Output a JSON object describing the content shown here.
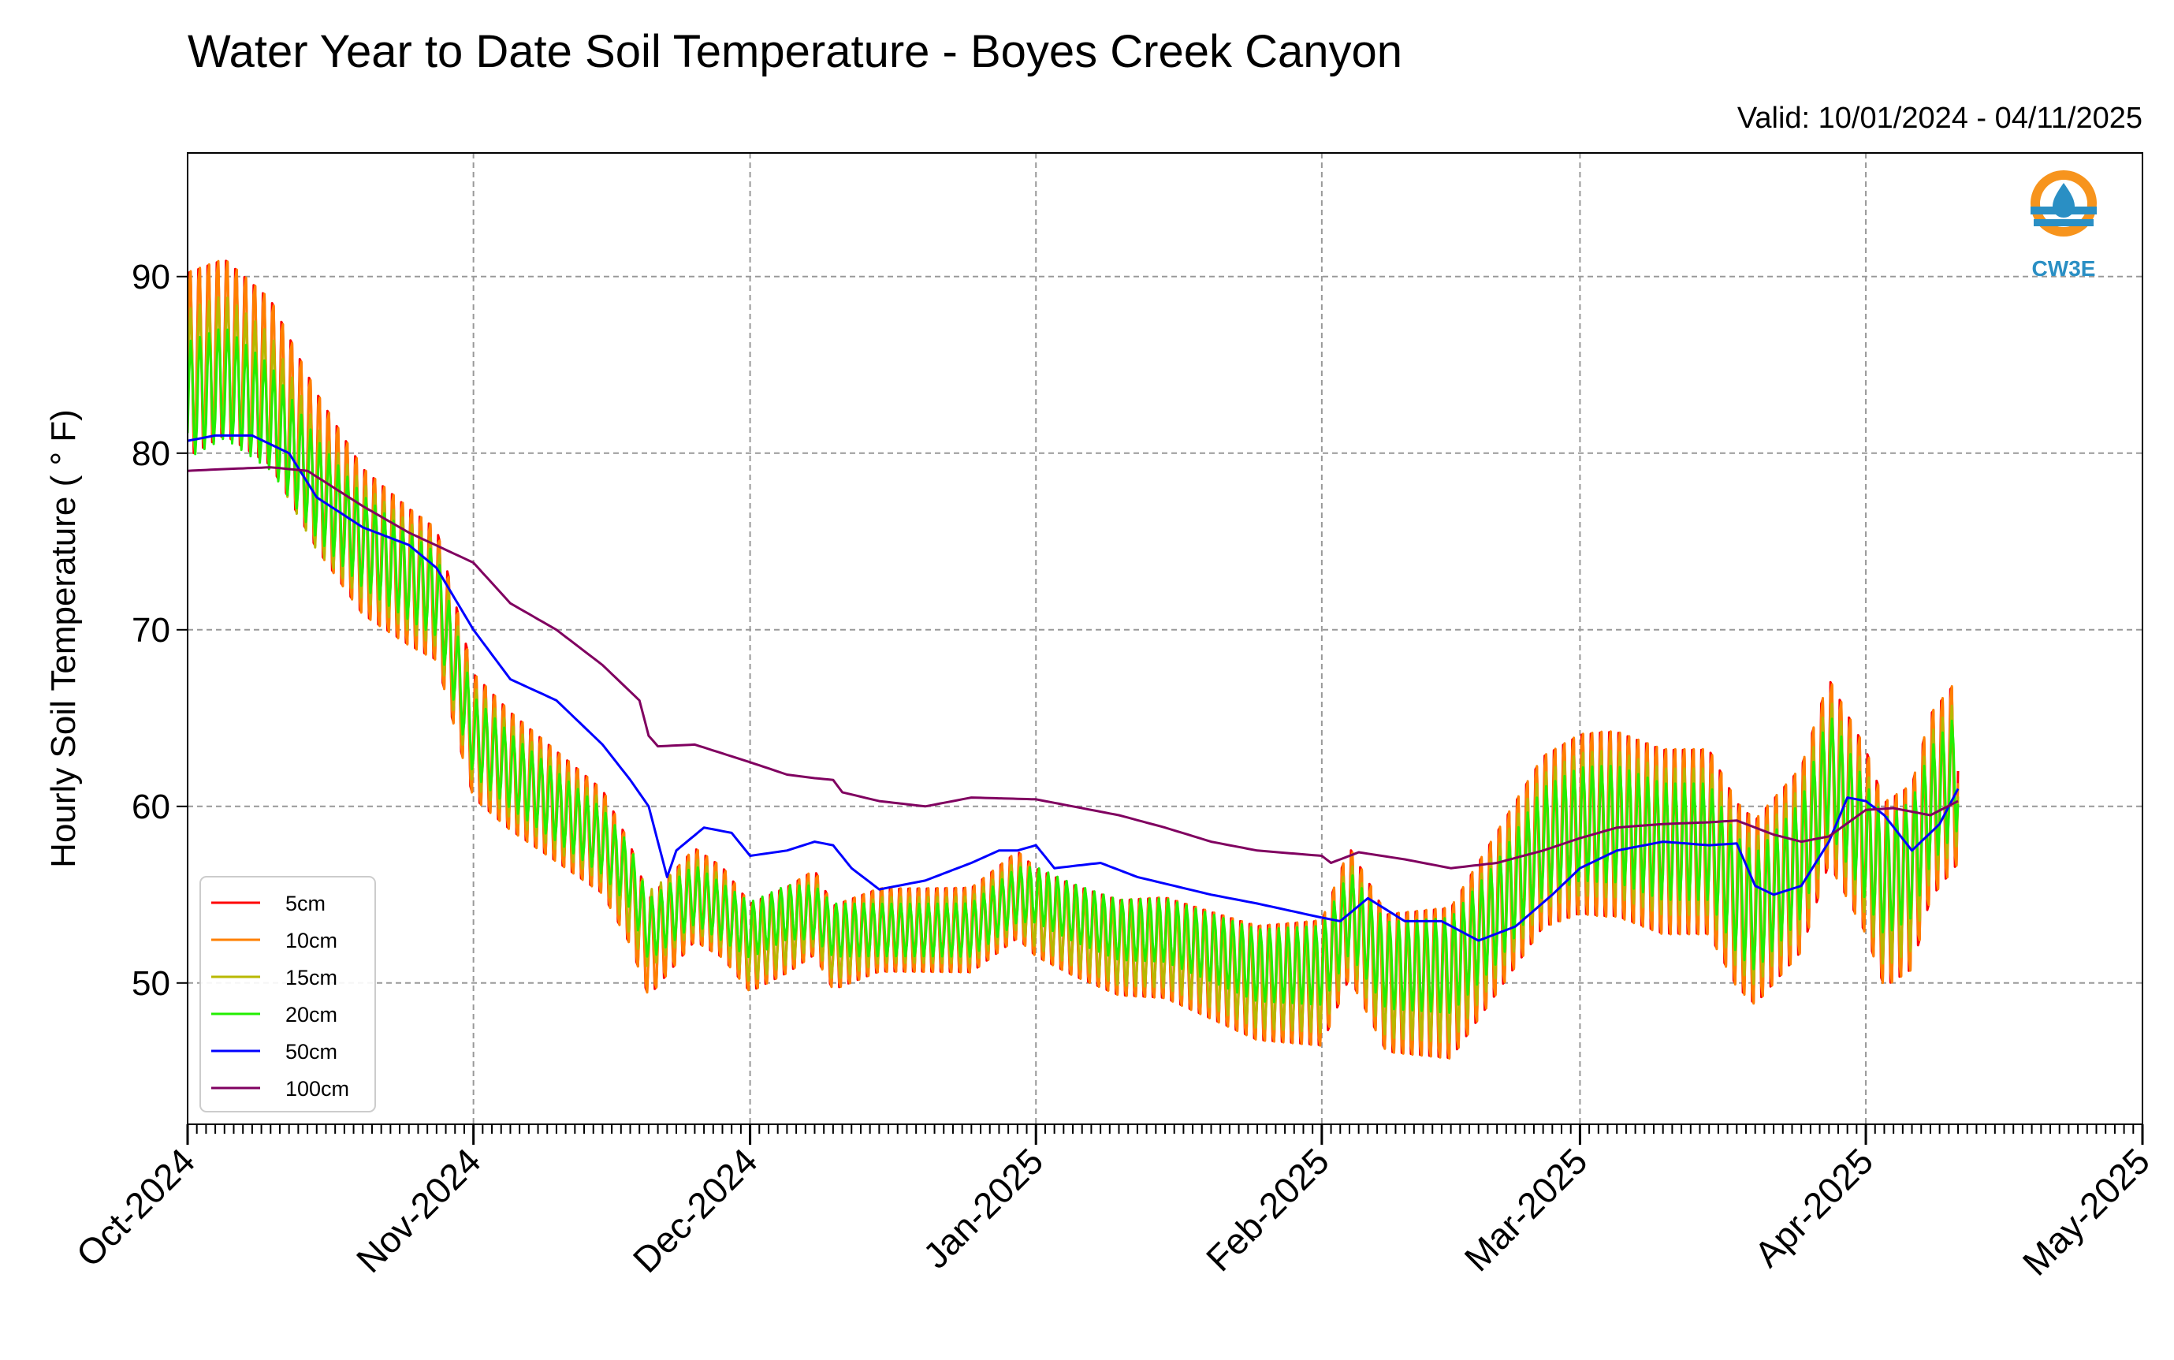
{
  "chart_data": {
    "type": "line",
    "title": "Water Year to Date Soil Temperature - Boyes Creek Canyon",
    "subtitle": "Valid: 10/01/2024 - 04/11/2025",
    "ylabel": "Hourly Soil Temperature ( ° F)",
    "xlabel": "",
    "ylim": [
      42,
      97
    ],
    "xlim": [
      "2024-10-01",
      "2025-05-01"
    ],
    "yticks": [
      50,
      60,
      70,
      80,
      90
    ],
    "xticks": [
      {
        "date": "2024-10-01",
        "label": "Oct-2024"
      },
      {
        "date": "2024-11-01",
        "label": "Nov-2024"
      },
      {
        "date": "2024-12-01",
        "label": "Dec-2024"
      },
      {
        "date": "2025-01-01",
        "label": "Jan-2025"
      },
      {
        "date": "2025-02-01",
        "label": "Feb-2025"
      },
      {
        "date": "2025-03-01",
        "label": "Mar-2025"
      },
      {
        "date": "2025-04-01",
        "label": "Apr-2025"
      },
      {
        "date": "2025-05-01",
        "label": "May-2025"
      }
    ],
    "grid": true,
    "legend_position": "lower-left",
    "daily_amplitude_approx": {
      "5cm": 1.0,
      "10cm": 0.95,
      "15cm": 0.7,
      "20cm": 0.55
    },
    "series": [
      {
        "name": "5cm",
        "color": "#ff0000",
        "x": [
          "2024-10-01",
          "2024-10-05",
          "2024-10-10",
          "2024-10-15",
          "2024-10-20",
          "2024-10-25",
          "2024-10-28",
          "2024-11-01",
          "2024-11-05",
          "2024-11-10",
          "2024-11-15",
          "2024-11-18",
          "2024-11-20",
          "2024-11-25",
          "2024-11-28",
          "2024-12-01",
          "2024-12-05",
          "2024-12-08",
          "2024-12-10",
          "2024-12-15",
          "2024-12-20",
          "2024-12-25",
          "2024-12-30",
          "2025-01-01",
          "2025-01-05",
          "2025-01-10",
          "2025-01-15",
          "2025-01-20",
          "2025-01-25",
          "2025-02-01",
          "2025-02-04",
          "2025-02-08",
          "2025-02-12",
          "2025-02-15",
          "2025-02-20",
          "2025-02-25",
          "2025-03-01",
          "2025-03-05",
          "2025-03-10",
          "2025-03-15",
          "2025-03-18",
          "2025-03-20",
          "2025-03-25",
          "2025-03-28",
          "2025-04-01",
          "2025-04-03",
          "2025-04-06",
          "2025-04-08",
          "2025-04-11"
        ],
        "y": [
          85,
          86,
          84,
          79,
          75,
          73,
          72,
          64,
          62,
          60,
          58,
          55,
          52,
          55,
          54,
          52,
          53,
          54,
          52,
          53,
          53,
          53,
          55,
          54,
          53,
          52,
          52,
          51,
          50,
          50,
          54,
          50,
          50,
          50,
          54,
          58,
          59,
          59,
          58,
          58,
          55,
          54,
          57,
          62,
          58,
          55,
          56,
          60,
          62
        ]
      },
      {
        "name": "10cm",
        "color": "#ff8000",
        "x": [
          "2024-10-01",
          "2024-10-05",
          "2024-10-10",
          "2024-10-15",
          "2024-10-20",
          "2024-10-25",
          "2024-10-28",
          "2024-11-01",
          "2024-11-05",
          "2024-11-10",
          "2024-11-15",
          "2024-11-18",
          "2024-11-20",
          "2024-11-25",
          "2024-11-28",
          "2024-12-01",
          "2024-12-05",
          "2024-12-08",
          "2024-12-10",
          "2024-12-15",
          "2024-12-20",
          "2024-12-25",
          "2024-12-30",
          "2025-01-01",
          "2025-01-05",
          "2025-01-10",
          "2025-01-15",
          "2025-01-20",
          "2025-01-25",
          "2025-02-01",
          "2025-02-04",
          "2025-02-08",
          "2025-02-12",
          "2025-02-15",
          "2025-02-20",
          "2025-02-25",
          "2025-03-01",
          "2025-03-05",
          "2025-03-10",
          "2025-03-15",
          "2025-03-18",
          "2025-03-20",
          "2025-03-25",
          "2025-03-28",
          "2025-04-01",
          "2025-04-03",
          "2025-04-06",
          "2025-04-08",
          "2025-04-11"
        ],
        "y": [
          85,
          86,
          84,
          79,
          75,
          73,
          72,
          64,
          62,
          60,
          58,
          55,
          52,
          55,
          54,
          52,
          53,
          54,
          52,
          53,
          53,
          53,
          55,
          54,
          53,
          52,
          52,
          51,
          50,
          50,
          54,
          50,
          50,
          50,
          54,
          58,
          59,
          59,
          58,
          58,
          55,
          54,
          57,
          62,
          58,
          55,
          56,
          60,
          62
        ]
      },
      {
        "name": "15cm",
        "color": "#b8b800",
        "x": [
          "2024-10-01",
          "2024-10-05",
          "2024-10-10",
          "2024-10-15",
          "2024-10-20",
          "2024-10-25",
          "2024-10-28",
          "2024-11-01",
          "2024-11-05",
          "2024-11-10",
          "2024-11-15",
          "2024-11-18",
          "2024-11-20",
          "2024-11-25",
          "2024-11-28",
          "2024-12-01",
          "2024-12-05",
          "2024-12-08",
          "2024-12-10",
          "2024-12-15",
          "2024-12-20",
          "2024-12-25",
          "2024-12-30",
          "2025-01-01",
          "2025-01-05",
          "2025-01-10",
          "2025-01-15",
          "2025-01-20",
          "2025-01-25",
          "2025-02-01",
          "2025-02-04",
          "2025-02-08",
          "2025-02-12",
          "2025-02-15",
          "2025-02-20",
          "2025-02-25",
          "2025-03-01",
          "2025-03-05",
          "2025-03-10",
          "2025-03-15",
          "2025-03-18",
          "2025-03-20",
          "2025-03-25",
          "2025-03-28",
          "2025-04-01",
          "2025-04-03",
          "2025-04-06",
          "2025-04-08",
          "2025-04-11"
        ],
        "y": [
          84,
          85,
          83,
          78,
          75,
          73,
          72,
          64,
          62,
          60,
          58,
          55,
          53,
          55,
          54,
          52,
          53,
          54,
          52,
          53,
          53,
          53,
          55,
          54,
          53,
          52,
          52,
          51,
          50,
          50,
          54,
          50,
          50,
          50,
          54,
          58,
          59,
          59,
          58,
          58,
          55,
          54,
          57,
          62,
          58,
          55,
          56,
          60,
          62
        ]
      },
      {
        "name": "20cm",
        "color": "#22ee00",
        "x": [
          "2024-10-01",
          "2024-10-05",
          "2024-10-10",
          "2024-10-15",
          "2024-10-20",
          "2024-10-25",
          "2024-10-28",
          "2024-11-01",
          "2024-11-05",
          "2024-11-10",
          "2024-11-15",
          "2024-11-18",
          "2024-11-20",
          "2024-11-25",
          "2024-11-28",
          "2024-12-01",
          "2024-12-05",
          "2024-12-08",
          "2024-12-10",
          "2024-12-15",
          "2024-12-20",
          "2024-12-25",
          "2024-12-30",
          "2025-01-01",
          "2025-01-05",
          "2025-01-10",
          "2025-01-15",
          "2025-01-20",
          "2025-01-25",
          "2025-02-01",
          "2025-02-04",
          "2025-02-08",
          "2025-02-12",
          "2025-02-15",
          "2025-02-20",
          "2025-02-25",
          "2025-03-01",
          "2025-03-05",
          "2025-03-10",
          "2025-03-15",
          "2025-03-18",
          "2025-03-20",
          "2025-03-25",
          "2025-03-28",
          "2025-04-01",
          "2025-04-03",
          "2025-04-06",
          "2025-04-08",
          "2025-04-11"
        ],
        "y": [
          83,
          84,
          82,
          78,
          75,
          73,
          72,
          64,
          62,
          60,
          58,
          56,
          53,
          55,
          54,
          53,
          54,
          54,
          53,
          53,
          53,
          53,
          55,
          55,
          54,
          53,
          53,
          52,
          51,
          51,
          54,
          51,
          51,
          51,
          54,
          58,
          59,
          59,
          58,
          58,
          55,
          54,
          57,
          62,
          58,
          56,
          57,
          60,
          62
        ]
      },
      {
        "name": "50cm",
        "color": "#0000ff",
        "x": [
          "2024-10-01",
          "2024-10-04",
          "2024-10-08",
          "2024-10-12",
          "2024-10-15",
          "2024-10-20",
          "2024-10-25",
          "2024-10-28",
          "2024-11-01",
          "2024-11-05",
          "2024-11-10",
          "2024-11-15",
          "2024-11-18",
          "2024-11-20",
          "2024-11-22",
          "2024-11-23",
          "2024-11-26",
          "2024-11-29",
          "2024-12-01",
          "2024-12-05",
          "2024-12-08",
          "2024-12-10",
          "2024-12-12",
          "2024-12-15",
          "2024-12-20",
          "2024-12-25",
          "2024-12-28",
          "2024-12-30",
          "2025-01-01",
          "2025-01-03",
          "2025-01-08",
          "2025-01-12",
          "2025-01-16",
          "2025-01-20",
          "2025-01-25",
          "2025-02-01",
          "2025-02-03",
          "2025-02-06",
          "2025-02-10",
          "2025-02-14",
          "2025-02-18",
          "2025-02-22",
          "2025-02-26",
          "2025-03-01",
          "2025-03-05",
          "2025-03-10",
          "2025-03-15",
          "2025-03-18",
          "2025-03-20",
          "2025-03-22",
          "2025-03-25",
          "2025-03-28",
          "2025-03-30",
          "2025-04-01",
          "2025-04-03",
          "2025-04-06",
          "2025-04-09",
          "2025-04-11"
        ],
        "y": [
          80.7,
          81.0,
          81.0,
          80.0,
          77.5,
          75.8,
          74.8,
          73.5,
          70.0,
          67.2,
          66.0,
          63.5,
          61.5,
          60.0,
          56.0,
          57.5,
          58.8,
          58.5,
          57.2,
          57.5,
          58.0,
          57.8,
          56.5,
          55.3,
          55.8,
          56.8,
          57.5,
          57.5,
          57.8,
          56.5,
          56.8,
          56.0,
          55.5,
          55.0,
          54.5,
          53.7,
          53.5,
          54.8,
          53.5,
          53.5,
          52.4,
          53.2,
          55.0,
          56.5,
          57.5,
          58.0,
          57.8,
          57.9,
          55.5,
          55.0,
          55.5,
          58.0,
          60.5,
          60.3,
          59.5,
          57.5,
          59.0,
          61.0
        ]
      },
      {
        "name": "100cm",
        "color": "#800060",
        "x": [
          "2024-10-01",
          "2024-10-05",
          "2024-10-10",
          "2024-10-14",
          "2024-10-20",
          "2024-10-25",
          "2024-11-01",
          "2024-11-05",
          "2024-11-10",
          "2024-11-15",
          "2024-11-19",
          "2024-11-20",
          "2024-11-21",
          "2024-11-25",
          "2024-12-01",
          "2024-12-05",
          "2024-12-08",
          "2024-12-10",
          "2024-12-11",
          "2024-12-15",
          "2024-12-20",
          "2024-12-25",
          "2025-01-01",
          "2025-01-05",
          "2025-01-10",
          "2025-01-15",
          "2025-01-20",
          "2025-01-25",
          "2025-02-01",
          "2025-02-02",
          "2025-02-05",
          "2025-02-10",
          "2025-02-15",
          "2025-02-20",
          "2025-02-25",
          "2025-03-01",
          "2025-03-05",
          "2025-03-10",
          "2025-03-15",
          "2025-03-18",
          "2025-03-20",
          "2025-03-22",
          "2025-03-25",
          "2025-03-28",
          "2025-04-01",
          "2025-04-04",
          "2025-04-08",
          "2025-04-11"
        ],
        "y": [
          79.0,
          79.1,
          79.2,
          79.0,
          77.0,
          75.5,
          73.8,
          71.5,
          70.0,
          68.0,
          66.0,
          64.0,
          63.4,
          63.5,
          62.5,
          61.8,
          61.6,
          61.5,
          60.8,
          60.3,
          60.0,
          60.5,
          60.4,
          60.0,
          59.5,
          58.8,
          58.0,
          57.5,
          57.2,
          56.8,
          57.4,
          57.0,
          56.5,
          56.8,
          57.5,
          58.2,
          58.8,
          59.0,
          59.1,
          59.2,
          58.8,
          58.4,
          58.0,
          58.3,
          59.8,
          59.9,
          59.5,
          60.3
        ]
      }
    ]
  },
  "legend": {
    "items": [
      {
        "label": "5cm",
        "color": "#ff0000"
      },
      {
        "label": "10cm",
        "color": "#ff8000"
      },
      {
        "label": "15cm",
        "color": "#b8b800"
      },
      {
        "label": "20cm",
        "color": "#22ee00"
      },
      {
        "label": "50cm",
        "color": "#0000ff"
      },
      {
        "label": "100cm",
        "color": "#800060"
      }
    ]
  },
  "logo": {
    "text": "CW3E",
    "icon": "water-drop-logo-icon",
    "ring_color": "#f7941d",
    "accent_color": "#2a8fc4"
  }
}
